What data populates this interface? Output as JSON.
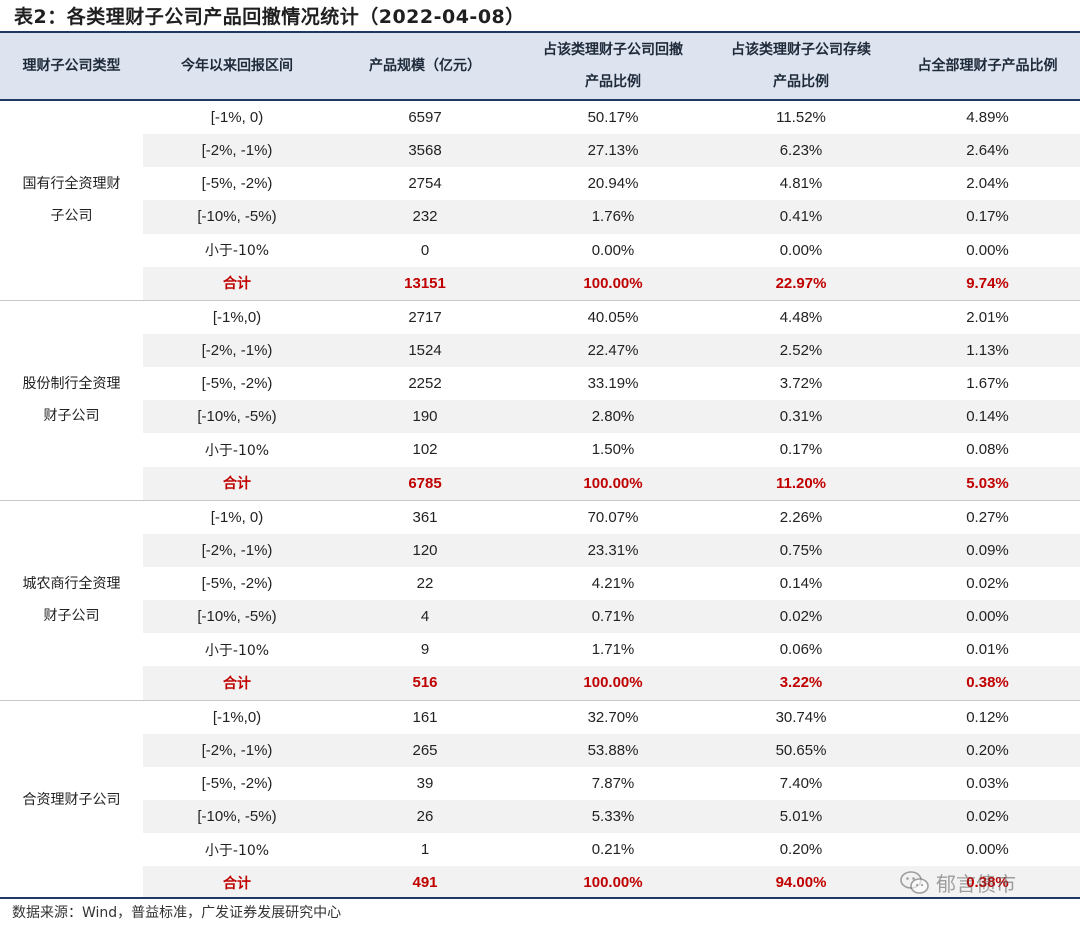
{
  "title": "表2：各类理财子公司产品回撤情况统计（2022-04-08）",
  "headers": {
    "type": "理财子公司类型",
    "range": "今年以来回报区间",
    "scale": "产品规模（亿元）",
    "share_type_line1": "占该类理财子公司回撤",
    "share_type_line2": "产品比例",
    "share_existing_line1": "占该类理财子公司存续",
    "share_existing_line2": "产品比例",
    "share_all": "占全部理财子产品比例"
  },
  "groups": [
    {
      "name_line1": "国有行全资理财",
      "name_line2": "子公司",
      "rows": [
        {
          "range": "[-1%, 0)",
          "scale": "6597",
          "p1": "50.17%",
          "p2": "11.52%",
          "p3": "4.89%"
        },
        {
          "range": "[-2%, -1%)",
          "scale": "3568",
          "p1": "27.13%",
          "p2": "6.23%",
          "p3": "2.64%"
        },
        {
          "range": "[-5%, -2%)",
          "scale": "2754",
          "p1": "20.94%",
          "p2": "4.81%",
          "p3": "2.04%"
        },
        {
          "range": "[-10%, -5%)",
          "scale": "232",
          "p1": "1.76%",
          "p2": "0.41%",
          "p3": "0.17%"
        },
        {
          "range": "小于-10%",
          "scale": "0",
          "p1": "0.00%",
          "p2": "0.00%",
          "p3": "0.00%"
        },
        {
          "range": "合计",
          "scale": "13151",
          "p1": "100.00%",
          "p2": "22.97%",
          "p3": "9.74%"
        }
      ]
    },
    {
      "name_line1": "股份制行全资理",
      "name_line2": "财子公司",
      "rows": [
        {
          "range": "[-1%,0)",
          "scale": "2717",
          "p1": "40.05%",
          "p2": "4.48%",
          "p3": "2.01%"
        },
        {
          "range": "[-2%, -1%)",
          "scale": "1524",
          "p1": "22.47%",
          "p2": "2.52%",
          "p3": "1.13%"
        },
        {
          "range": "[-5%, -2%)",
          "scale": "2252",
          "p1": "33.19%",
          "p2": "3.72%",
          "p3": "1.67%"
        },
        {
          "range": "[-10%, -5%)",
          "scale": "190",
          "p1": "2.80%",
          "p2": "0.31%",
          "p3": "0.14%"
        },
        {
          "range": "小于-10%",
          "scale": "102",
          "p1": "1.50%",
          "p2": "0.17%",
          "p3": "0.08%"
        },
        {
          "range": "合计",
          "scale": "6785",
          "p1": "100.00%",
          "p2": "11.20%",
          "p3": "5.03%"
        }
      ]
    },
    {
      "name_line1": "城农商行全资理",
      "name_line2": "财子公司",
      "rows": [
        {
          "range": "[-1%, 0)",
          "scale": "361",
          "p1": "70.07%",
          "p2": "2.26%",
          "p3": "0.27%"
        },
        {
          "range": "[-2%, -1%)",
          "scale": "120",
          "p1": "23.31%",
          "p2": "0.75%",
          "p3": "0.09%"
        },
        {
          "range": "[-5%, -2%)",
          "scale": "22",
          "p1": "4.21%",
          "p2": "0.14%",
          "p3": "0.02%"
        },
        {
          "range": "[-10%, -5%)",
          "scale": "4",
          "p1": "0.71%",
          "p2": "0.02%",
          "p3": "0.00%"
        },
        {
          "range": "小于-10%",
          "scale": "9",
          "p1": "1.71%",
          "p2": "0.06%",
          "p3": "0.01%"
        },
        {
          "range": "合计",
          "scale": "516",
          "p1": "100.00%",
          "p2": "3.22%",
          "p3": "0.38%"
        }
      ]
    },
    {
      "name_line1": "合资理财子公司",
      "name_line2": "",
      "rows": [
        {
          "range": "[-1%,0)",
          "scale": "161",
          "p1": "32.70%",
          "p2": "30.74%",
          "p3": "0.12%"
        },
        {
          "range": "[-2%, -1%)",
          "scale": "265",
          "p1": "53.88%",
          "p2": "50.65%",
          "p3": "0.20%"
        },
        {
          "range": "[-5%, -2%)",
          "scale": "39",
          "p1": "7.87%",
          "p2": "7.40%",
          "p3": "0.03%"
        },
        {
          "range": "[-10%, -5%)",
          "scale": "26",
          "p1": "5.33%",
          "p2": "5.01%",
          "p3": "0.02%"
        },
        {
          "range": "小于-10%",
          "scale": "1",
          "p1": "0.21%",
          "p2": "0.20%",
          "p3": "0.00%"
        },
        {
          "range": "合计",
          "scale": "491",
          "p1": "100.00%",
          "p2": "94.00%",
          "p3": "0.38%"
        }
      ]
    }
  ],
  "source": "数据来源：Wind，普益标准，广发证券发展研究中心",
  "watermark": {
    "icon": "wechat-icon",
    "text": "郁言债市"
  },
  "colors": {
    "header_bg": "#dde3ef",
    "rule": "#203864",
    "total_text": "#c00000",
    "shade": "#f2f2f2"
  }
}
